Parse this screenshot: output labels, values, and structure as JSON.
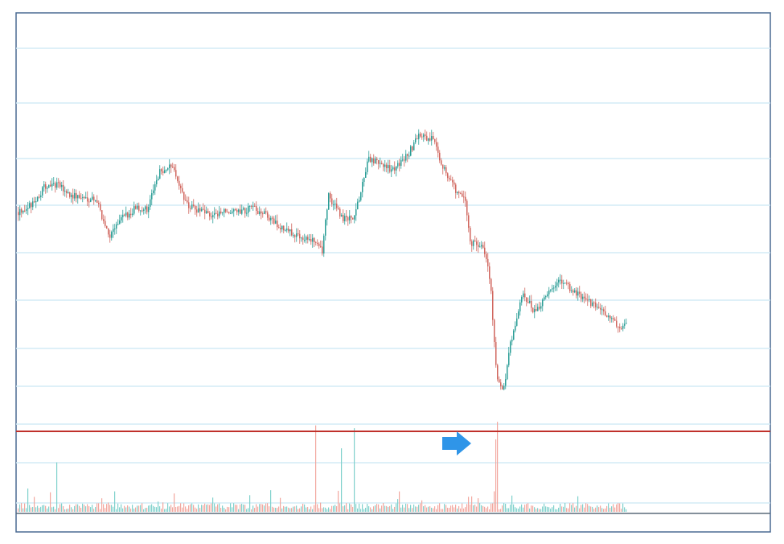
{
  "chart_data": {
    "type": "candlestick",
    "title": "",
    "xlabel": "",
    "ylabel": "",
    "grid": true,
    "legend": "none",
    "colors": {
      "up": "#2a9d96",
      "down": "#d0655d",
      "volume_up": "#7fd1cc",
      "volume_down": "#f2a79f",
      "gridline": "#d4ebf5",
      "support_line": "#c0312b",
      "arrow": "#2f95e8",
      "frame": "#4a6a92"
    },
    "price_range": [
      0,
      100
    ],
    "price_path_keypoints": [
      [
        0,
        62
      ],
      [
        2,
        64
      ],
      [
        4,
        69
      ],
      [
        6,
        70
      ],
      [
        8,
        67
      ],
      [
        10,
        66
      ],
      [
        12,
        66
      ],
      [
        14,
        55
      ],
      [
        16,
        60
      ],
      [
        18,
        63
      ],
      [
        20,
        63
      ],
      [
        22,
        74
      ],
      [
        24,
        75
      ],
      [
        26,
        64
      ],
      [
        28,
        62
      ],
      [
        30,
        61
      ],
      [
        32,
        62
      ],
      [
        34,
        62
      ],
      [
        36,
        63
      ],
      [
        38,
        62
      ],
      [
        40,
        58
      ],
      [
        42,
        56
      ],
      [
        44,
        55
      ],
      [
        46,
        53
      ],
      [
        47,
        51
      ],
      [
        48,
        67
      ],
      [
        50,
        60
      ],
      [
        52,
        60
      ],
      [
        54,
        77
      ],
      [
        56,
        76
      ],
      [
        58,
        74
      ],
      [
        60,
        78
      ],
      [
        62,
        84
      ],
      [
        64,
        83
      ],
      [
        66,
        74
      ],
      [
        68,
        67
      ],
      [
        69,
        66
      ],
      [
        70,
        53
      ],
      [
        72,
        52
      ],
      [
        73,
        42
      ],
      [
        74,
        13
      ],
      [
        75,
        10
      ],
      [
        76,
        23
      ],
      [
        78,
        38
      ],
      [
        80,
        33
      ],
      [
        82,
        39
      ],
      [
        84,
        42
      ],
      [
        86,
        39
      ],
      [
        88,
        36
      ],
      [
        90,
        34
      ],
      [
        92,
        30
      ],
      [
        93,
        29
      ],
      [
        94,
        29
      ]
    ],
    "support_level": 0,
    "volume_spike_positions": [
      6,
      46,
      50,
      52,
      74
    ]
  }
}
